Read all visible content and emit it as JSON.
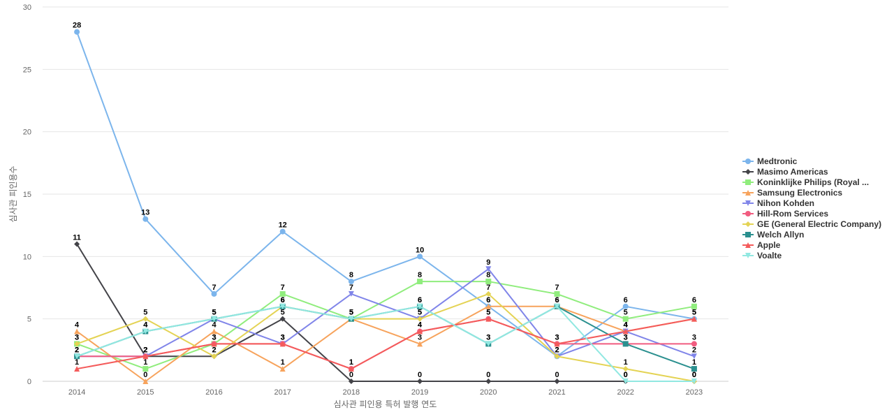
{
  "chart_data": {
    "type": "line",
    "xlabel": "심사관 피인용 특허 발행 연도",
    "ylabel": "심사관 피인용수",
    "ylim": [
      0,
      30
    ],
    "yticks": [
      0,
      5,
      10,
      15,
      20,
      25,
      30
    ],
    "grid": true,
    "legend_position": "right",
    "categories": [
      "2014",
      "2015",
      "2016",
      "2017",
      "2018",
      "2019",
      "2020",
      "2021",
      "2022",
      "2023"
    ],
    "series": [
      {
        "name": "Medtronic",
        "color": "#7cb5ec",
        "marker": "circle",
        "values": [
          28,
          13,
          7,
          12,
          8,
          10,
          6,
          2,
          6,
          5
        ]
      },
      {
        "name": "Masimo Americas",
        "color": "#434348",
        "marker": "diamond",
        "values": [
          11,
          2,
          2,
          5,
          0,
          0,
          0,
          0,
          0,
          0
        ]
      },
      {
        "name": "Koninklijke Philips (Royal ...",
        "color": "#90ed7d",
        "marker": "square",
        "values": [
          3,
          1,
          3,
          7,
          5,
          8,
          8,
          7,
          5,
          6
        ]
      },
      {
        "name": "Samsung Electronics",
        "color": "#f7a35c",
        "marker": "triangle",
        "values": [
          4,
          0,
          4,
          1,
          5,
          3,
          6,
          6,
          4,
          5
        ]
      },
      {
        "name": "Nihon Kohden",
        "color": "#8085e9",
        "marker": "triangle-down",
        "values": [
          2,
          2,
          5,
          3,
          7,
          5,
          9,
          2,
          4,
          2
        ]
      },
      {
        "name": "Hill-Rom Services",
        "color": "#f15c80",
        "marker": "circle",
        "values": [
          2,
          2,
          3,
          3,
          1,
          4,
          5,
          3,
          3,
          3
        ]
      },
      {
        "name": "GE (General Electric Company)",
        "color": "#e4d354",
        "marker": "diamond",
        "values": [
          3,
          5,
          2,
          6,
          5,
          5,
          7,
          2,
          1,
          0
        ]
      },
      {
        "name": "Welch Allyn",
        "color": "#2b908f",
        "marker": "square",
        "values": [
          2,
          4,
          5,
          6,
          5,
          6,
          3,
          6,
          3,
          1
        ]
      },
      {
        "name": "Apple",
        "color": "#f45b5b",
        "marker": "triangle",
        "values": [
          1,
          2,
          3,
          3,
          1,
          4,
          5,
          3,
          4,
          5
        ]
      },
      {
        "name": "Voalte",
        "color": "#91e8e1",
        "marker": "triangle-down",
        "values": [
          2,
          4,
          5,
          6,
          5,
          6,
          3,
          6,
          0,
          0
        ]
      }
    ]
  }
}
